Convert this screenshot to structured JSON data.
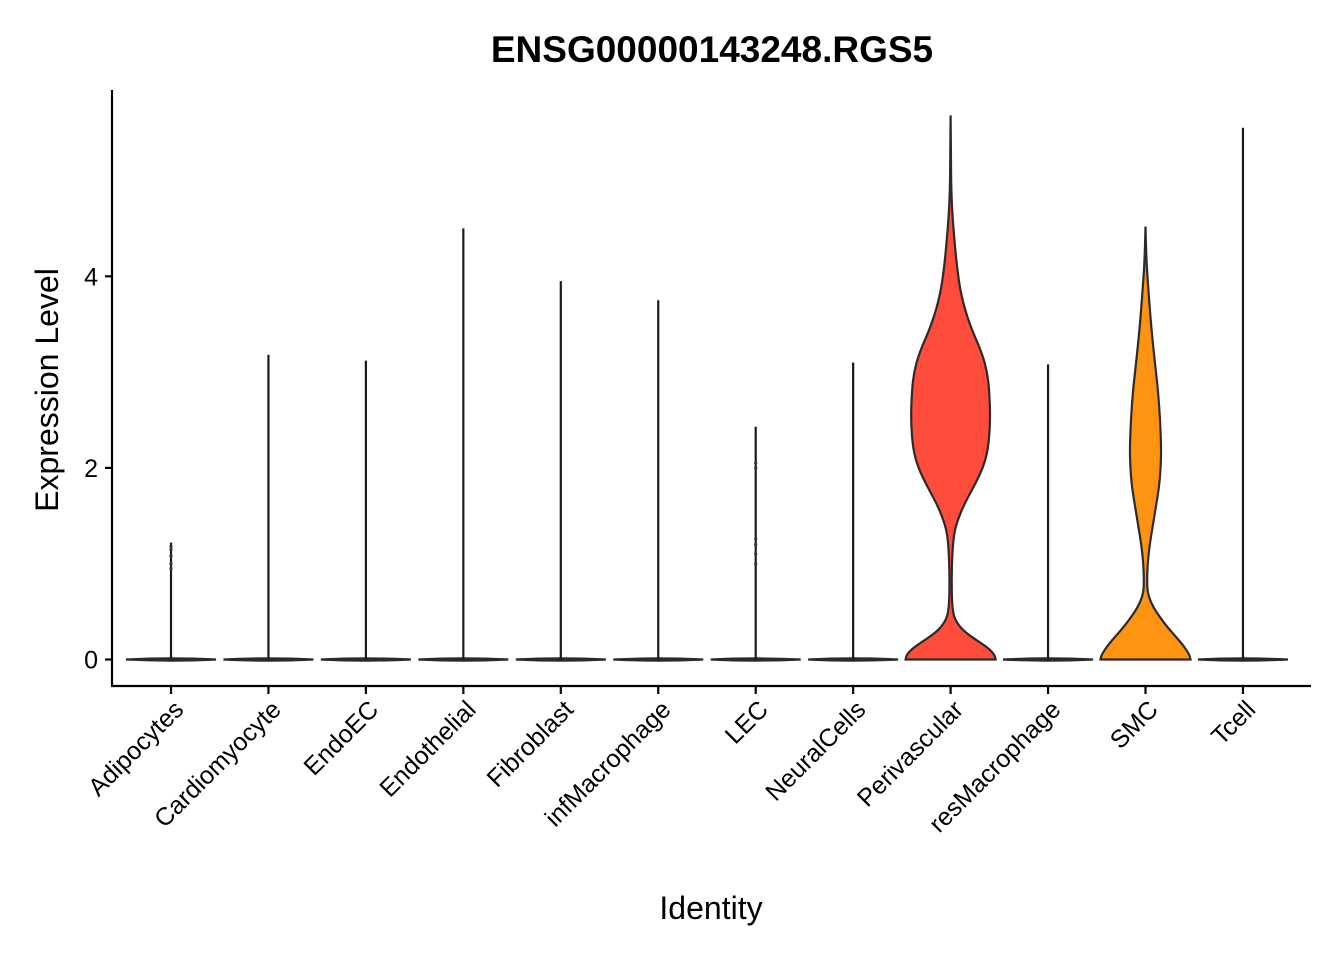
{
  "chart_data": {
    "type": "violin",
    "title": "ENSG00000143248.RGS5",
    "xlabel": "Identity",
    "ylabel": "Expression Level",
    "ylim": [
      -0.3,
      5.9
    ],
    "yticks": [
      0,
      2,
      4
    ],
    "categories": [
      "Adipocytes",
      "Cardiomyocyte",
      "EndoEC",
      "Endothelial",
      "Fibroblast",
      "infMacrophage",
      "LEC",
      "NeuralCells",
      "Perivascular",
      "resMacrophage",
      "SMC",
      "Tcell"
    ],
    "max_values": [
      1.22,
      3.18,
      3.12,
      4.5,
      3.95,
      3.75,
      2.43,
      3.1,
      5.68,
      3.08,
      4.52,
      5.55
    ],
    "fills": [
      "#e0e0e0",
      "#e0e0e0",
      "#e0e0e0",
      "#e0e0e0",
      "#e0e0e0",
      "#e0e0e0",
      "#e0e0e0",
      "#e0e0e0",
      "#ff4c3b",
      "#e0e0e0",
      "#ff9413",
      "#e0e0e0"
    ],
    "outlier_points": [
      {
        "category": "Adipocytes",
        "values": [
          0.95,
          1.0,
          1.08,
          1.15,
          1.18
        ]
      },
      {
        "category": "LEC",
        "values": [
          1.0,
          1.1,
          1.2,
          1.26,
          2.0,
          2.05
        ]
      }
    ],
    "density_profiles": {
      "Perivascular": {
        "y": [
          0,
          0.05,
          0.12,
          0.2,
          0.3,
          0.4,
          0.5,
          0.7,
          1.0,
          1.25,
          1.4,
          1.6,
          1.8,
          2.0,
          2.2,
          2.5,
          2.8,
          3.0,
          3.2,
          3.5,
          3.8,
          4.1,
          4.4,
          4.6,
          4.8,
          5.0,
          5.3,
          5.68
        ],
        "w": [
          0.43,
          0.42,
          0.36,
          0.25,
          0.12,
          0.05,
          0.02,
          0.01,
          0.012,
          0.025,
          0.05,
          0.12,
          0.22,
          0.31,
          0.36,
          0.38,
          0.37,
          0.35,
          0.3,
          0.18,
          0.1,
          0.06,
          0.035,
          0.02,
          0.01,
          0.005,
          0.003,
          0.0
        ]
      },
      "SMC": {
        "y": [
          0,
          0.05,
          0.15,
          0.25,
          0.35,
          0.5,
          0.6,
          0.7,
          0.8,
          1.0,
          1.2,
          1.4,
          1.6,
          1.8,
          2.0,
          2.2,
          2.5,
          2.8,
          3.0,
          3.3,
          3.6,
          3.9,
          4.1,
          4.3,
          4.52
        ],
        "w": [
          0.43,
          0.42,
          0.36,
          0.28,
          0.2,
          0.1,
          0.05,
          0.02,
          0.015,
          0.02,
          0.04,
          0.07,
          0.1,
          0.13,
          0.145,
          0.15,
          0.14,
          0.12,
          0.1,
          0.07,
          0.045,
          0.025,
          0.012,
          0.005,
          0.0
        ]
      }
    }
  }
}
